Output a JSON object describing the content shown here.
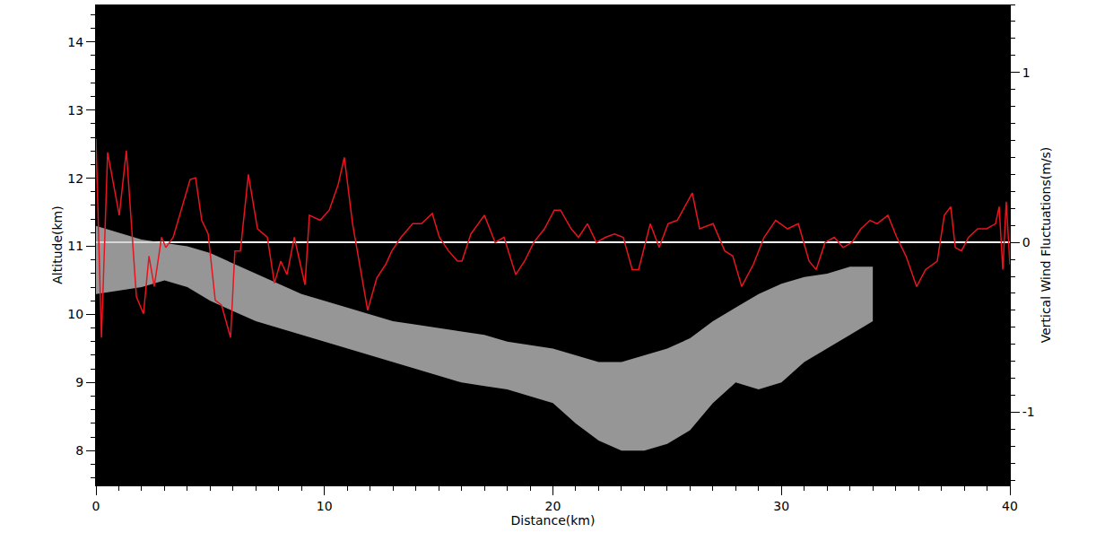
{
  "chart_data": {
    "type": "line",
    "x_label": "Distance(km)",
    "y_label": "Altitude(km)",
    "y2_label": "Vertical Wind Fluctuations(m/s)",
    "xlim": [
      0,
      40
    ],
    "xticks": [
      0,
      10,
      20,
      30,
      40
    ],
    "ylim": [
      7.49,
      14.55
    ],
    "yticks": [
      8,
      9,
      10,
      11,
      12,
      13,
      14
    ],
    "y2lim": [
      -1.43,
      1.4
    ],
    "y2ticks": [
      -1,
      0,
      1
    ],
    "grid": false,
    "series": [
      {
        "type": "area",
        "color": "#c8c8c8",
        "x": [
          0,
          1,
          2,
          3,
          4,
          5,
          6,
          7,
          8,
          9,
          10,
          11,
          12,
          13,
          14,
          15,
          16,
          17,
          18,
          19,
          20,
          21,
          22,
          23,
          24,
          25,
          26,
          27,
          28,
          29,
          30,
          31,
          32,
          33,
          34
        ],
        "upper": [
          11.3,
          11.2,
          11.1,
          11.05,
          11.0,
          10.9,
          10.75,
          10.6,
          10.45,
          10.3,
          10.2,
          10.1,
          10.0,
          9.9,
          9.85,
          9.8,
          9.75,
          9.7,
          9.6,
          9.55,
          9.5,
          9.4,
          9.3,
          9.3,
          9.4,
          9.5,
          9.65,
          9.9,
          10.1,
          10.3,
          10.45,
          10.55,
          10.6,
          10.7,
          10.7
        ],
        "lower": [
          10.3,
          10.35,
          10.4,
          10.5,
          10.4,
          10.2,
          10.05,
          9.9,
          9.8,
          9.7,
          9.6,
          9.5,
          9.4,
          9.3,
          9.2,
          9.1,
          9.0,
          8.95,
          8.9,
          8.8,
          8.7,
          8.4,
          8.15,
          8.0,
          8.0,
          8.1,
          8.3,
          8.7,
          9.0,
          8.9,
          9.0,
          9.3,
          9.5,
          9.7,
          9.9
        ]
      },
      {
        "type": "line",
        "color": "#e8141e",
        "axis": "y2",
        "x": [
          0.0,
          0.24,
          0.51,
          1.02,
          1.33,
          1.77,
          2.08,
          2.32,
          2.55,
          2.87,
          3.06,
          3.38,
          4.12,
          4.36,
          4.63,
          4.91,
          5.22,
          5.5,
          5.89,
          6.08,
          6.32,
          6.67,
          7.07,
          7.5,
          7.81,
          8.09,
          8.36,
          8.68,
          9.15,
          9.34,
          9.81,
          10.21,
          10.6,
          10.87,
          11.23,
          11.89,
          12.29,
          12.68,
          12.95,
          13.35,
          13.86,
          14.25,
          14.72,
          15.03,
          15.43,
          15.82,
          16.02,
          16.41,
          17.0,
          17.47,
          17.86,
          18.37,
          18.76,
          19.16,
          19.63,
          20.06,
          20.33,
          20.8,
          21.12,
          21.51,
          21.9,
          22.3,
          22.69,
          23.08,
          23.47,
          23.75,
          24.26,
          24.65,
          25.04,
          25.44,
          26.1,
          26.42,
          27.01,
          27.52,
          27.87,
          28.26,
          28.77,
          29.24,
          29.75,
          30.27,
          30.74,
          31.21,
          31.52,
          31.91,
          32.31,
          32.7,
          33.09,
          33.48,
          33.88,
          34.19,
          34.66,
          35.05,
          35.45,
          35.92,
          36.31,
          36.82,
          37.13,
          37.41,
          37.61,
          37.88,
          38.19,
          38.59,
          38.98,
          39.37,
          39.53,
          39.69,
          39.84,
          40.0
        ],
        "values": [
          0.61,
          -0.56,
          0.53,
          0.16,
          0.54,
          -0.32,
          -0.42,
          -0.08,
          -0.26,
          0.03,
          -0.03,
          0.03,
          0.37,
          0.38,
          0.13,
          0.05,
          -0.34,
          -0.37,
          -0.56,
          -0.05,
          -0.05,
          0.4,
          0.08,
          0.03,
          -0.24,
          -0.11,
          -0.19,
          0.03,
          -0.25,
          0.16,
          0.13,
          0.19,
          0.34,
          0.5,
          0.11,
          -0.4,
          -0.21,
          -0.13,
          -0.05,
          0.03,
          0.11,
          0.11,
          0.17,
          0.03,
          -0.05,
          -0.11,
          -0.11,
          0.05,
          0.16,
          0.0,
          0.03,
          -0.19,
          -0.11,
          0.0,
          0.08,
          0.19,
          0.19,
          0.08,
          0.03,
          0.11,
          0.0,
          0.03,
          0.05,
          0.03,
          -0.16,
          -0.16,
          0.11,
          -0.03,
          0.11,
          0.13,
          0.29,
          0.08,
          0.11,
          -0.05,
          -0.08,
          -0.26,
          -0.13,
          0.03,
          0.13,
          0.08,
          0.11,
          -0.11,
          -0.16,
          0.0,
          0.03,
          -0.03,
          0.0,
          0.08,
          0.13,
          0.11,
          0.16,
          0.03,
          -0.08,
          -0.26,
          -0.16,
          -0.11,
          0.16,
          0.21,
          -0.03,
          -0.05,
          0.03,
          0.08,
          0.08,
          0.11,
          0.21,
          -0.16,
          0.24,
          -0.13
        ]
      }
    ]
  }
}
